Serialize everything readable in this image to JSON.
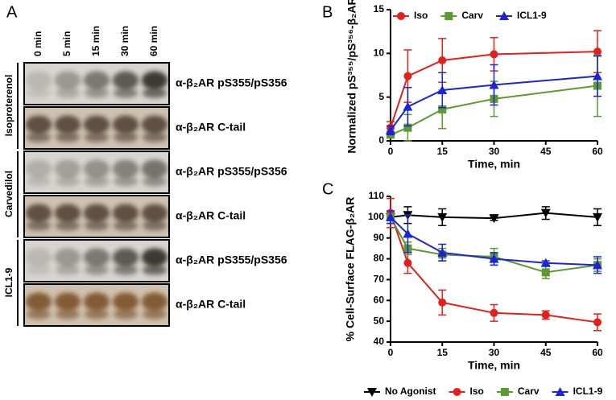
{
  "blot_panel": {
    "panel": "A",
    "lanes": [
      "0 min",
      "5 min",
      "15 min",
      "30 min",
      "60 min"
    ],
    "groups": [
      {
        "name": "Isoproterenol",
        "rows": [
          "α-β₂AR pS355/pS356",
          "α-β₂AR C-tail"
        ]
      },
      {
        "name": "Carvedilol",
        "rows": [
          "α-β₂AR pS355/pS356",
          "α-β₂AR C-tail"
        ]
      },
      {
        "name": "ICL1-9",
        "rows": [
          "α-β₂AR pS355/pS356",
          "α-β₂AR C-tail"
        ]
      }
    ]
  },
  "chart_data": [
    {
      "type": "line",
      "panel": "B",
      "xlabel": "Time, min",
      "ylabel": "Normalized pS³⁵⁵/pS³⁵⁶-β₂AR",
      "x": [
        0,
        5,
        15,
        30,
        60
      ],
      "xlim": [
        0,
        60
      ],
      "xticks": [
        0,
        15,
        30,
        45,
        60
      ],
      "ylim": [
        0,
        15
      ],
      "yticks": [
        0,
        5,
        10,
        15
      ],
      "legend": "top",
      "series": [
        {
          "name": "Iso",
          "color": "#e3201b",
          "marker": "circle",
          "values": [
            1.5,
            7.4,
            9.2,
            9.9,
            10.2
          ],
          "errors": [
            0.7,
            3.0,
            2.5,
            1.9,
            2.4
          ]
        },
        {
          "name": "Carv",
          "color": "#5b9b2f",
          "marker": "square",
          "values": [
            0.7,
            1.5,
            3.6,
            4.8,
            6.3
          ],
          "errors": [
            0.3,
            1.5,
            2.2,
            2.0,
            3.5
          ]
        },
        {
          "name": "ICL1-9",
          "color": "#1c24d6",
          "marker": "triangle",
          "values": [
            1.2,
            3.9,
            5.8,
            6.4,
            7.4
          ],
          "errors": [
            0.5,
            2.2,
            2.0,
            2.3,
            2.3
          ]
        }
      ]
    },
    {
      "type": "line",
      "panel": "C",
      "xlabel": "Time, min",
      "ylabel": "% Cell-Surface FLAG-β₂AR",
      "x": [
        0,
        5,
        15,
        30,
        45,
        60
      ],
      "xlim": [
        0,
        60
      ],
      "xticks": [
        0,
        15,
        30,
        45,
        60
      ],
      "ylim": [
        40,
        110
      ],
      "yticks": [
        40,
        50,
        60,
        70,
        80,
        90,
        100,
        110
      ],
      "legend": "bottom",
      "series": [
        {
          "name": "No Agonist",
          "color": "#000000",
          "marker": "down-triangle",
          "values": [
            100,
            101,
            100,
            99.5,
            102,
            100
          ],
          "errors": [
            3,
            4,
            4,
            1,
            3,
            4
          ]
        },
        {
          "name": "Iso",
          "color": "#e3201b",
          "marker": "circle",
          "values": [
            102,
            78,
            59,
            54,
            53,
            49.5
          ],
          "errors": [
            7,
            5,
            6,
            4,
            2,
            4
          ]
        },
        {
          "name": "Carv",
          "color": "#5b9b2f",
          "marker": "square",
          "values": [
            100,
            85,
            82,
            81,
            73.5,
            77
          ],
          "errors": [
            3,
            3,
            3,
            4,
            3,
            3
          ]
        },
        {
          "name": "ICL1-9",
          "color": "#1c24d6",
          "marker": "triangle",
          "values": [
            100,
            92,
            83,
            80,
            78,
            77
          ],
          "errors": [
            3,
            9,
            4,
            3,
            1,
            4
          ]
        }
      ]
    }
  ]
}
